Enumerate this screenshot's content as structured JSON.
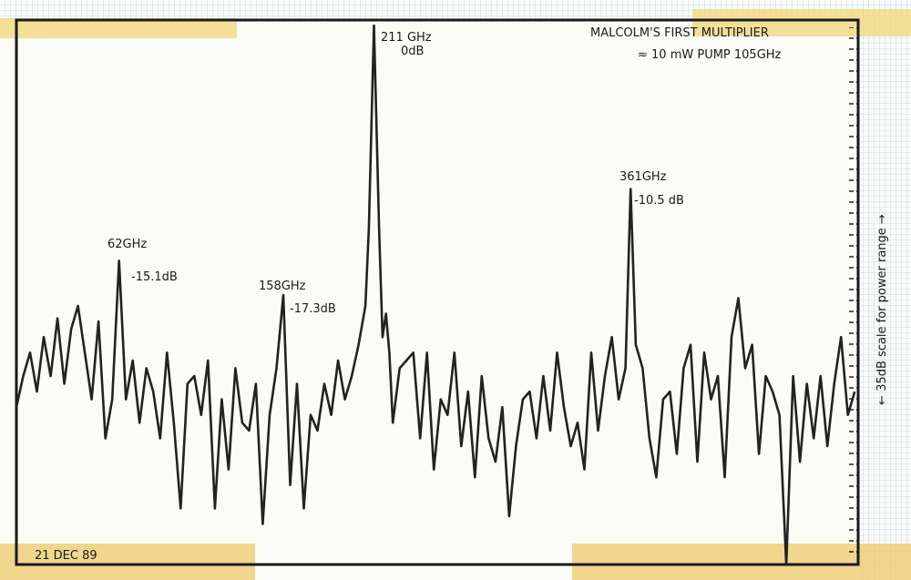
{
  "chart_data": {
    "type": "line",
    "title": "MALCOLM'S FIRST MULTIPLIER",
    "subtitle": "≈ 10 mW PUMP 105GHz",
    "side_note": "← 35dB scale for power range →",
    "date": "21 DEC 89",
    "annotations": [
      "211 GHz",
      "0dB",
      "361GHz",
      "-10.5 dB",
      "62GHz",
      "-15.1dB",
      "158GHz",
      "-17.3dB"
    ],
    "xlim": [
      2,
      494
    ],
    "ylim": [
      -34.6,
      0.35
    ],
    "x": [
      2,
      6,
      10,
      14,
      18,
      22,
      26,
      30,
      34,
      38,
      42,
      46,
      50,
      54,
      58,
      62,
      66,
      70,
      74,
      78,
      82,
      86,
      90,
      94,
      98,
      102,
      106,
      110,
      114,
      118,
      122,
      126,
      130,
      134,
      138,
      142,
      146,
      150,
      154,
      158,
      162,
      166,
      170,
      174,
      178,
      182,
      186,
      190,
      194,
      198,
      202,
      206,
      208,
      211,
      214,
      216,
      218,
      220,
      222,
      226,
      230,
      234,
      238,
      242,
      246,
      250,
      254,
      258,
      262,
      266,
      270,
      274,
      278,
      282,
      286,
      290,
      294,
      298,
      302,
      306,
      310,
      314,
      318,
      322,
      326,
      330,
      334,
      338,
      342,
      346,
      350,
      354,
      358,
      361,
      364,
      368,
      372,
      376,
      380,
      384,
      388,
      392,
      396,
      400,
      404,
      408,
      412,
      416,
      420,
      424,
      428,
      432,
      436,
      440,
      444,
      448,
      452,
      456,
      460,
      464,
      468,
      472,
      476,
      480,
      484,
      488,
      492
    ],
    "series": [
      {
        "name": "trace",
        "color": "#222222",
        "values": [
          -24.5,
          -22.5,
          -21,
          -23.5,
          -20,
          -22.5,
          -18.8,
          -23,
          -19.5,
          -18,
          -21,
          -24,
          -19,
          -26.5,
          -24,
          -15.1,
          -24,
          -21.5,
          -25.5,
          -22,
          -23.5,
          -26.5,
          -21,
          -25.5,
          -31,
          -23,
          -22.5,
          -25,
          -21.5,
          -31,
          -24,
          -28.5,
          -22,
          -25.5,
          -26,
          -23,
          -32,
          -25,
          -22,
          -17.3,
          -29.5,
          -23,
          -31,
          -25,
          -26,
          -23,
          -25,
          -21.5,
          -24,
          -22.5,
          -20.5,
          -18,
          -13,
          0,
          -13,
          -20,
          -18.5,
          -21,
          -25.5,
          -22,
          -21.5,
          -21,
          -26.5,
          -21,
          -28.5,
          -24,
          -25,
          -21,
          -27,
          -23.5,
          -29,
          -22.5,
          -26.5,
          -28,
          -24.5,
          -31.5,
          -27,
          -24,
          -23.5,
          -26.5,
          -22.5,
          -26,
          -21,
          -24.5,
          -27,
          -25.5,
          -28.5,
          -21,
          -26,
          -22.5,
          -20,
          -24,
          -22,
          -10.5,
          -20.5,
          -22,
          -26.5,
          -29,
          -24,
          -23.5,
          -27.5,
          -22,
          -20.5,
          -28,
          -21,
          -24,
          -22.5,
          -29,
          -20,
          -17.5,
          -22,
          -20.5,
          -27.5,
          -22.5,
          -23.5,
          -25,
          -34.6,
          -22.5,
          -28,
          -23,
          -26.5,
          -22.5,
          -27,
          -23,
          -20,
          -25,
          -23.5
        ]
      }
    ]
  }
}
